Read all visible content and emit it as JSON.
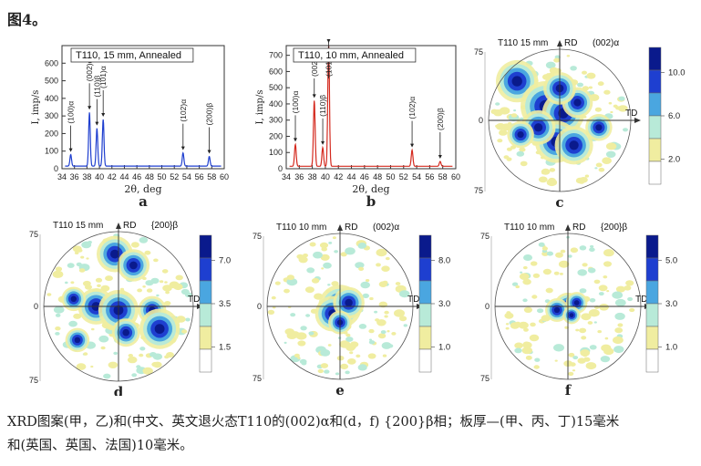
{
  "figure": {
    "title": "图4。",
    "caption_line1": "XRD图案(甲，乙)和(中文、英文退火态T110的(002)α和(d，f) {200}β相；板厚—(甲、丙、丁)15毫米",
    "caption_line2": "和(英国、英国、法国)10毫米。"
  },
  "chart_data": [
    {
      "type": "line",
      "letter": "a",
      "title": "T110, 15 mm, Annealed",
      "xlabel": "2θ, deg",
      "ylabel": "I, imp/s",
      "xlim": [
        34,
        60
      ],
      "ylim": [
        0,
        700
      ],
      "xticks": [
        34,
        36,
        38,
        40,
        42,
        44,
        46,
        48,
        50,
        52,
        54,
        56,
        58,
        60
      ],
      "yticks": [
        0,
        100,
        200,
        300,
        400,
        500,
        600
      ],
      "color": "#1f3fcf",
      "baseline": 15,
      "peaks": [
        {
          "x": 35.4,
          "y": 80,
          "label": "(100)α"
        },
        {
          "x": 38.4,
          "y": 320,
          "label": "(002)α"
        },
        {
          "x": 39.6,
          "y": 230,
          "label": "(110)β"
        },
        {
          "x": 40.6,
          "y": 280,
          "label": "(101)α"
        },
        {
          "x": 53.4,
          "y": 90,
          "label": "(102)α"
        },
        {
          "x": 57.6,
          "y": 70,
          "label": "(200)β"
        }
      ]
    },
    {
      "type": "line",
      "letter": "b",
      "title": "T110, 10 mm, Annealed",
      "xlabel": "2θ, deg",
      "ylabel": "I, imp/s",
      "xlim": [
        34,
        60
      ],
      "ylim": [
        0,
        760
      ],
      "xticks": [
        34,
        36,
        38,
        40,
        42,
        44,
        46,
        48,
        50,
        52,
        54,
        56,
        58,
        60
      ],
      "yticks": [
        0,
        100,
        200,
        300,
        400,
        500,
        600,
        700
      ],
      "color": "#d42a1f",
      "baseline": 15,
      "peaks": [
        {
          "x": 35.4,
          "y": 150,
          "label": "(100)α"
        },
        {
          "x": 38.3,
          "y": 420,
          "label": "(002)α"
        },
        {
          "x": 39.6,
          "y": 130,
          "label": "(110)β"
        },
        {
          "x": 40.5,
          "y": 760,
          "label": "(101)α"
        },
        {
          "x": 53.3,
          "y": 115,
          "label": "(102)α"
        },
        {
          "x": 57.6,
          "y": 45,
          "label": "(200)β"
        }
      ]
    },
    {
      "type": "heatmap",
      "letter": "c",
      "title": "T110  15 mm",
      "reflection": "(002)α",
      "axis_rd": "RD",
      "axis_td": "TD",
      "axis_ticks": [
        "75",
        "0",
        "75"
      ],
      "scale_labels": [
        "10.0",
        "6.0",
        "2.0"
      ]
    },
    {
      "type": "heatmap",
      "letter": "d",
      "title": "T110  15 mm",
      "reflection": "{200}β",
      "axis_rd": "RD",
      "axis_td": "TD",
      "axis_ticks": [
        "75",
        "0",
        "75"
      ],
      "scale_labels": [
        "7.0",
        "3.5",
        "1.5"
      ]
    },
    {
      "type": "heatmap",
      "letter": "e",
      "title": "T110  10 mm",
      "reflection": "(002)α",
      "axis_rd": "RD",
      "axis_td": "TD",
      "axis_ticks": [
        "75",
        "0",
        "75"
      ],
      "scale_labels": [
        "8.0",
        "3.0",
        "1.0"
      ]
    },
    {
      "type": "heatmap",
      "letter": "f",
      "title": "T110  10 mm",
      "reflection": "{200}β",
      "axis_rd": "RD",
      "axis_td": "TD",
      "axis_ticks": [
        "75",
        "0",
        "75"
      ],
      "scale_labels": [
        "5.0",
        "3.0",
        "1.0"
      ]
    }
  ],
  "colors": {
    "level1": "#f0eda0",
    "level2": "#b8ead8",
    "level3": "#4aa6e0",
    "level4": "#1e3fd0",
    "level5": "#0a1a8c"
  }
}
